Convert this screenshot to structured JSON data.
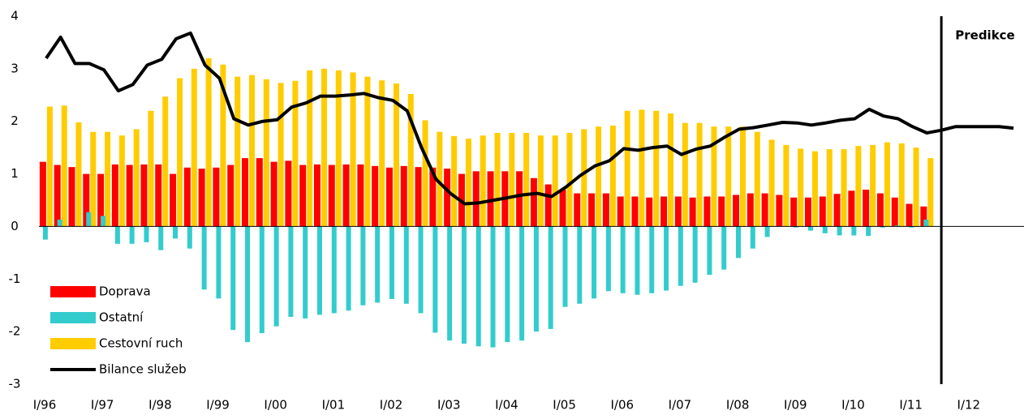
{
  "chart_data": {
    "type": "bar",
    "categories": [
      "I/96",
      null,
      null,
      null,
      "I/97",
      null,
      null,
      null,
      "I/98",
      null,
      null,
      null,
      "I/99",
      null,
      null,
      null,
      "I/00",
      null,
      null,
      null,
      "I/01",
      null,
      null,
      null,
      "I/02",
      null,
      null,
      null,
      "I/03",
      null,
      null,
      null,
      "I/04",
      null,
      null,
      null,
      "I/05",
      null,
      null,
      null,
      "I/06",
      null,
      null,
      null,
      "I/07",
      null,
      null,
      null,
      "I/08",
      null,
      null,
      null,
      "I/09",
      null,
      null,
      null,
      "I/10",
      null,
      null,
      null,
      "I/11",
      null,
      null,
      null,
      "I/12",
      null,
      null,
      null
    ],
    "series": [
      {
        "name": "Cestovní ruch",
        "type": "bar",
        "color": "#ffcc00",
        "values": [
          2.28,
          2.3,
          1.98,
          1.8,
          1.8,
          1.73,
          1.85,
          2.2,
          2.47,
          2.82,
          3.0,
          3.2,
          3.08,
          2.85,
          2.88,
          2.8,
          2.73,
          2.77,
          2.97,
          3.0,
          2.97,
          2.93,
          2.85,
          2.78,
          2.72,
          2.52,
          2.02,
          1.8,
          1.72,
          1.67,
          1.73,
          1.78,
          1.78,
          1.78,
          1.73,
          1.73,
          1.78,
          1.85,
          1.9,
          1.92,
          2.2,
          2.22,
          2.2,
          2.15,
          1.97,
          1.97,
          1.9,
          1.9,
          1.9,
          1.8,
          1.65,
          1.55,
          1.48,
          1.43,
          1.47,
          1.47,
          1.53,
          1.55,
          1.6,
          1.58,
          1.5,
          1.3,
          null,
          null,
          null,
          null,
          null,
          null
        ]
      },
      {
        "name": "Doprava",
        "type": "bar",
        "color": "#ff0000",
        "values": [
          1.23,
          1.17,
          1.13,
          1.0,
          1.0,
          1.18,
          1.17,
          1.18,
          1.18,
          1.0,
          1.12,
          1.1,
          1.12,
          1.17,
          1.3,
          1.3,
          1.23,
          1.25,
          1.17,
          1.18,
          1.17,
          1.18,
          1.18,
          1.15,
          1.12,
          1.15,
          1.13,
          1.12,
          1.1,
          1.0,
          1.05,
          1.05,
          1.05,
          1.05,
          0.92,
          0.8,
          0.7,
          0.63,
          0.63,
          0.63,
          0.57,
          0.57,
          0.55,
          0.57,
          0.57,
          0.55,
          0.57,
          0.57,
          0.6,
          0.63,
          0.63,
          0.6,
          0.55,
          0.55,
          0.57,
          0.62,
          0.68,
          0.7,
          0.63,
          0.55,
          0.43,
          0.38,
          null,
          null,
          null,
          null,
          null,
          null
        ]
      },
      {
        "name": "Ostatní",
        "type": "bar",
        "color": "#33cccc",
        "values": [
          -0.25,
          0.13,
          0,
          0.27,
          0.2,
          -0.33,
          -0.33,
          -0.3,
          -0.45,
          -0.23,
          -0.42,
          -1.2,
          -1.37,
          -1.97,
          -2.2,
          -2.03,
          -1.9,
          -1.72,
          -1.75,
          -1.68,
          -1.65,
          -1.6,
          -1.5,
          -1.45,
          -1.38,
          -1.47,
          -1.65,
          -2.02,
          -2.17,
          -2.23,
          -2.28,
          -2.3,
          -2.2,
          -2.17,
          -2.0,
          -1.95,
          -1.53,
          -1.47,
          -1.37,
          -1.23,
          -1.27,
          -1.3,
          -1.27,
          -1.22,
          -1.13,
          -1.07,
          -0.92,
          -0.82,
          -0.6,
          -0.42,
          -0.2,
          0,
          -0.02,
          -0.08,
          -0.13,
          -0.17,
          -0.17,
          -0.18,
          -0.02,
          0.02,
          -0.02,
          0.13,
          null,
          null,
          null,
          null,
          null,
          null
        ]
      },
      {
        "name": "Bilance služeb",
        "type": "line",
        "color": "#000000",
        "values": [
          3.2,
          3.6,
          3.1,
          3.1,
          2.98,
          2.58,
          2.7,
          3.07,
          3.18,
          3.57,
          3.68,
          3.07,
          2.82,
          2.05,
          1.93,
          2.0,
          2.03,
          2.27,
          2.35,
          2.48,
          2.48,
          2.5,
          2.53,
          2.45,
          2.4,
          2.2,
          1.5,
          0.9,
          0.63,
          0.43,
          0.45,
          0.5,
          0.55,
          0.6,
          0.63,
          0.57,
          0.75,
          0.97,
          1.15,
          1.25,
          1.48,
          1.45,
          1.5,
          1.53,
          1.37,
          1.47,
          1.53,
          1.7,
          1.85,
          1.88,
          1.93,
          1.98,
          1.97,
          1.93,
          1.97,
          2.02,
          2.05,
          2.23,
          2.1,
          2.05,
          1.9,
          1.78,
          1.83,
          1.9,
          1.9,
          1.9,
          1.9,
          1.87
        ]
      }
    ],
    "annotation": "Predikce",
    "ylim": [
      -3,
      4
    ],
    "yticks": [
      -3,
      -2,
      -1,
      0,
      1,
      2,
      3,
      4
    ],
    "grid": false,
    "legend": "lower left"
  }
}
